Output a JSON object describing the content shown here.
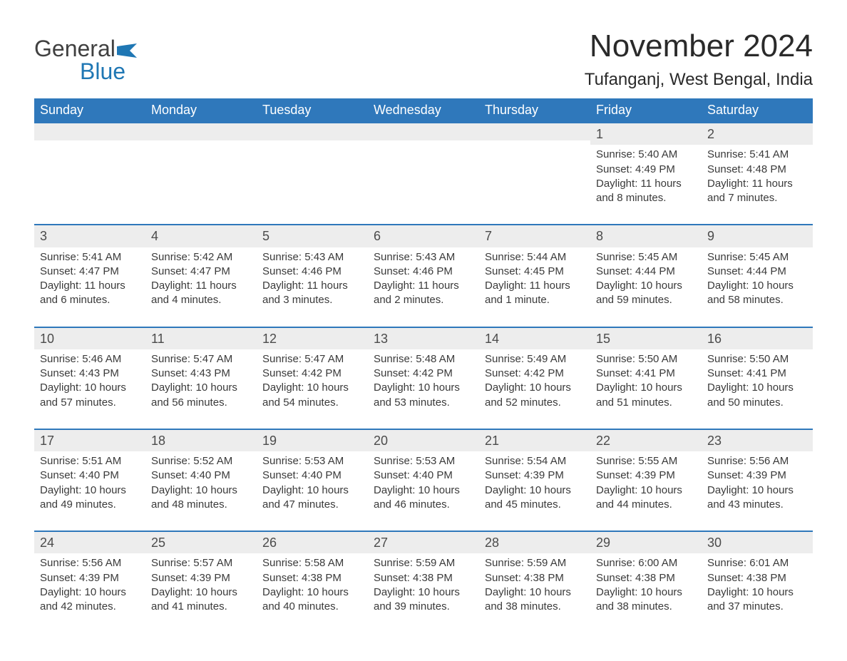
{
  "brand": {
    "name_part1": "General",
    "name_part2": "Blue"
  },
  "title": "November 2024",
  "location": "Tufanganj, West Bengal, India",
  "colors": {
    "header_bg": "#2f78bb",
    "header_text": "#ffffff",
    "daybar_bg": "#ededed",
    "daybar_border": "#2f78bb",
    "body_text": "#3a3a3a",
    "brand_gray": "#404040",
    "brand_blue": "#1f77b4",
    "page_bg": "#ffffff"
  },
  "fonts": {
    "family": "Arial, Helvetica, sans-serif",
    "title_size_pt": 33,
    "location_size_pt": 18,
    "dow_size_pt": 14,
    "daynum_size_pt": 14,
    "body_size_pt": 11
  },
  "layout": {
    "columns": 7,
    "rows": 5,
    "first_day_column_index": 5
  },
  "days_of_week": [
    "Sunday",
    "Monday",
    "Tuesday",
    "Wednesday",
    "Thursday",
    "Friday",
    "Saturday"
  ],
  "weeks": [
    [
      null,
      null,
      null,
      null,
      null,
      {
        "n": "1",
        "sunrise": "Sunrise: 5:40 AM",
        "sunset": "Sunset: 4:49 PM",
        "daylight": "Daylight: 11 hours and 8 minutes."
      },
      {
        "n": "2",
        "sunrise": "Sunrise: 5:41 AM",
        "sunset": "Sunset: 4:48 PM",
        "daylight": "Daylight: 11 hours and 7 minutes."
      }
    ],
    [
      {
        "n": "3",
        "sunrise": "Sunrise: 5:41 AM",
        "sunset": "Sunset: 4:47 PM",
        "daylight": "Daylight: 11 hours and 6 minutes."
      },
      {
        "n": "4",
        "sunrise": "Sunrise: 5:42 AM",
        "sunset": "Sunset: 4:47 PM",
        "daylight": "Daylight: 11 hours and 4 minutes."
      },
      {
        "n": "5",
        "sunrise": "Sunrise: 5:43 AM",
        "sunset": "Sunset: 4:46 PM",
        "daylight": "Daylight: 11 hours and 3 minutes."
      },
      {
        "n": "6",
        "sunrise": "Sunrise: 5:43 AM",
        "sunset": "Sunset: 4:46 PM",
        "daylight": "Daylight: 11 hours and 2 minutes."
      },
      {
        "n": "7",
        "sunrise": "Sunrise: 5:44 AM",
        "sunset": "Sunset: 4:45 PM",
        "daylight": "Daylight: 11 hours and 1 minute."
      },
      {
        "n": "8",
        "sunrise": "Sunrise: 5:45 AM",
        "sunset": "Sunset: 4:44 PM",
        "daylight": "Daylight: 10 hours and 59 minutes."
      },
      {
        "n": "9",
        "sunrise": "Sunrise: 5:45 AM",
        "sunset": "Sunset: 4:44 PM",
        "daylight": "Daylight: 10 hours and 58 minutes."
      }
    ],
    [
      {
        "n": "10",
        "sunrise": "Sunrise: 5:46 AM",
        "sunset": "Sunset: 4:43 PM",
        "daylight": "Daylight: 10 hours and 57 minutes."
      },
      {
        "n": "11",
        "sunrise": "Sunrise: 5:47 AM",
        "sunset": "Sunset: 4:43 PM",
        "daylight": "Daylight: 10 hours and 56 minutes."
      },
      {
        "n": "12",
        "sunrise": "Sunrise: 5:47 AM",
        "sunset": "Sunset: 4:42 PM",
        "daylight": "Daylight: 10 hours and 54 minutes."
      },
      {
        "n": "13",
        "sunrise": "Sunrise: 5:48 AM",
        "sunset": "Sunset: 4:42 PM",
        "daylight": "Daylight: 10 hours and 53 minutes."
      },
      {
        "n": "14",
        "sunrise": "Sunrise: 5:49 AM",
        "sunset": "Sunset: 4:42 PM",
        "daylight": "Daylight: 10 hours and 52 minutes."
      },
      {
        "n": "15",
        "sunrise": "Sunrise: 5:50 AM",
        "sunset": "Sunset: 4:41 PM",
        "daylight": "Daylight: 10 hours and 51 minutes."
      },
      {
        "n": "16",
        "sunrise": "Sunrise: 5:50 AM",
        "sunset": "Sunset: 4:41 PM",
        "daylight": "Daylight: 10 hours and 50 minutes."
      }
    ],
    [
      {
        "n": "17",
        "sunrise": "Sunrise: 5:51 AM",
        "sunset": "Sunset: 4:40 PM",
        "daylight": "Daylight: 10 hours and 49 minutes."
      },
      {
        "n": "18",
        "sunrise": "Sunrise: 5:52 AM",
        "sunset": "Sunset: 4:40 PM",
        "daylight": "Daylight: 10 hours and 48 minutes."
      },
      {
        "n": "19",
        "sunrise": "Sunrise: 5:53 AM",
        "sunset": "Sunset: 4:40 PM",
        "daylight": "Daylight: 10 hours and 47 minutes."
      },
      {
        "n": "20",
        "sunrise": "Sunrise: 5:53 AM",
        "sunset": "Sunset: 4:40 PM",
        "daylight": "Daylight: 10 hours and 46 minutes."
      },
      {
        "n": "21",
        "sunrise": "Sunrise: 5:54 AM",
        "sunset": "Sunset: 4:39 PM",
        "daylight": "Daylight: 10 hours and 45 minutes."
      },
      {
        "n": "22",
        "sunrise": "Sunrise: 5:55 AM",
        "sunset": "Sunset: 4:39 PM",
        "daylight": "Daylight: 10 hours and 44 minutes."
      },
      {
        "n": "23",
        "sunrise": "Sunrise: 5:56 AM",
        "sunset": "Sunset: 4:39 PM",
        "daylight": "Daylight: 10 hours and 43 minutes."
      }
    ],
    [
      {
        "n": "24",
        "sunrise": "Sunrise: 5:56 AM",
        "sunset": "Sunset: 4:39 PM",
        "daylight": "Daylight: 10 hours and 42 minutes."
      },
      {
        "n": "25",
        "sunrise": "Sunrise: 5:57 AM",
        "sunset": "Sunset: 4:39 PM",
        "daylight": "Daylight: 10 hours and 41 minutes."
      },
      {
        "n": "26",
        "sunrise": "Sunrise: 5:58 AM",
        "sunset": "Sunset: 4:38 PM",
        "daylight": "Daylight: 10 hours and 40 minutes."
      },
      {
        "n": "27",
        "sunrise": "Sunrise: 5:59 AM",
        "sunset": "Sunset: 4:38 PM",
        "daylight": "Daylight: 10 hours and 39 minutes."
      },
      {
        "n": "28",
        "sunrise": "Sunrise: 5:59 AM",
        "sunset": "Sunset: 4:38 PM",
        "daylight": "Daylight: 10 hours and 38 minutes."
      },
      {
        "n": "29",
        "sunrise": "Sunrise: 6:00 AM",
        "sunset": "Sunset: 4:38 PM",
        "daylight": "Daylight: 10 hours and 38 minutes."
      },
      {
        "n": "30",
        "sunrise": "Sunrise: 6:01 AM",
        "sunset": "Sunset: 4:38 PM",
        "daylight": "Daylight: 10 hours and 37 minutes."
      }
    ]
  ]
}
